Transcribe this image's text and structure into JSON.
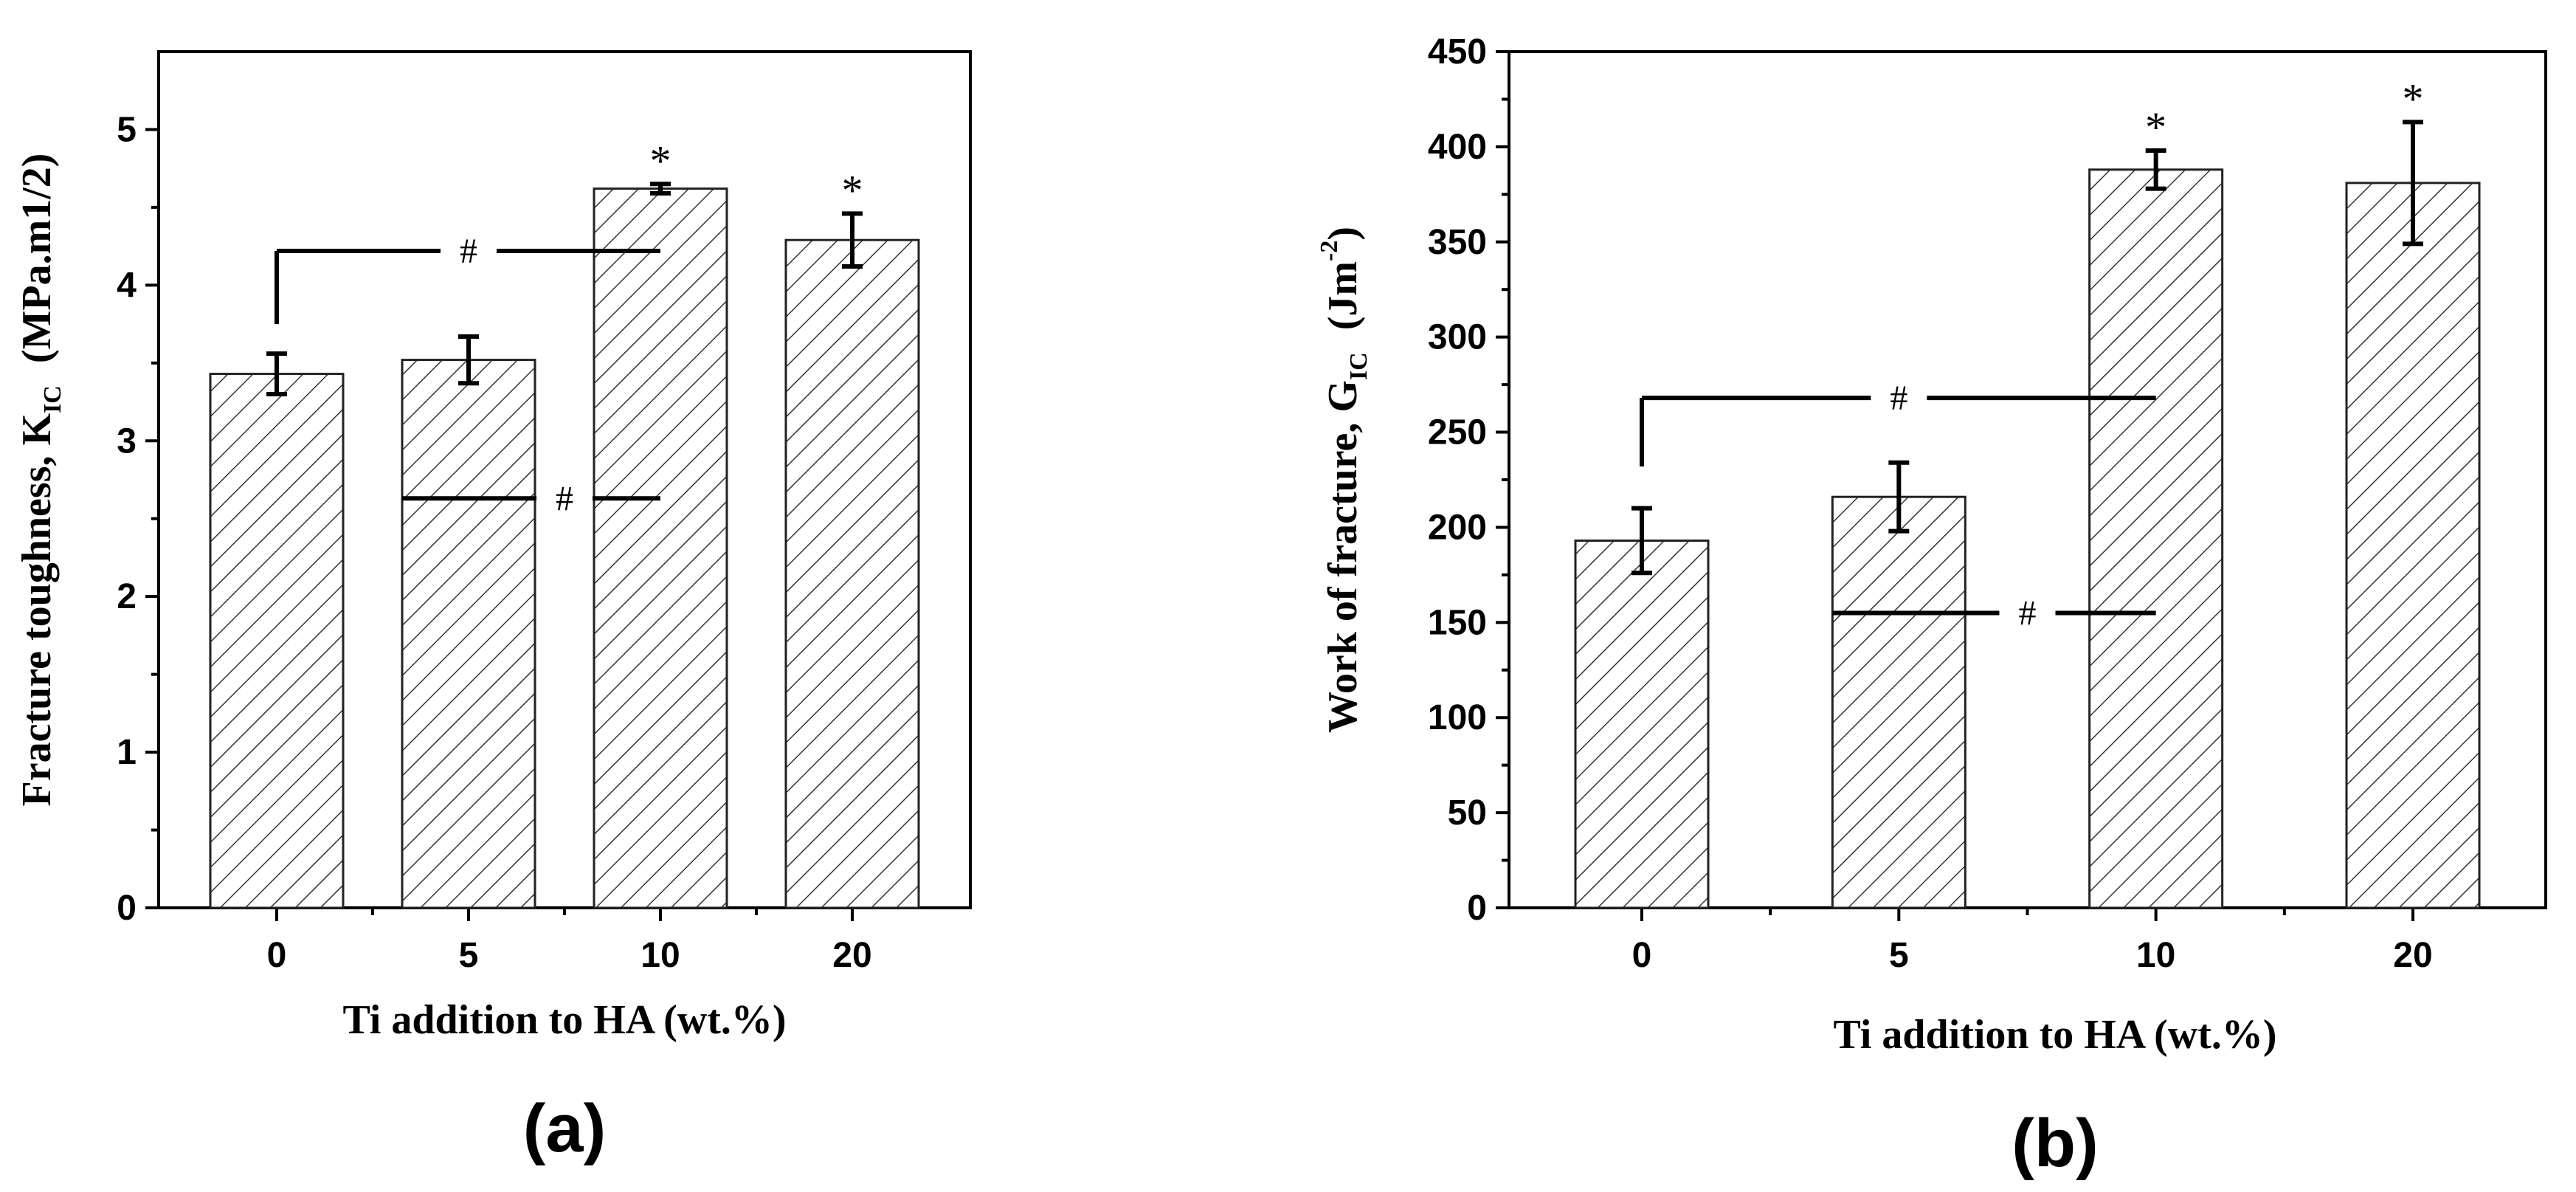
{
  "chart_data": [
    {
      "id": "a",
      "type": "bar",
      "panel_label": "(a)",
      "categories": [
        "0",
        "5",
        "10",
        "20"
      ],
      "values": [
        3.43,
        3.52,
        4.62,
        4.29
      ],
      "errors": [
        0.13,
        0.15,
        0.03,
        0.17
      ],
      "significance_star": [
        false,
        false,
        true,
        true
      ],
      "star_symbol": "*",
      "ylim": [
        0,
        5.5
      ],
      "yticks": [
        0,
        1,
        2,
        3,
        4,
        5
      ],
      "xlabel": "Ti addition to HA (wt.%)",
      "ylabel_main": "Fracture toughness, K",
      "ylabel_sub": "IC",
      "ylabel_unit": "(MPa.m1/2)",
      "brackets": [
        {
          "type": "elbow",
          "from_category": "0",
          "to_category": "10",
          "level": 4.22,
          "start": 3.75,
          "label": "#"
        },
        {
          "type": "line",
          "from_category": "5",
          "to_category": "10",
          "level": 2.63,
          "label": "#"
        }
      ]
    },
    {
      "id": "b",
      "type": "bar",
      "panel_label": "(b)",
      "categories": [
        "0",
        "5",
        "10",
        "20"
      ],
      "values": [
        193,
        216,
        388,
        381
      ],
      "errors": [
        17,
        18,
        10,
        32
      ],
      "significance_star": [
        false,
        false,
        true,
        true
      ],
      "star_symbol": "*",
      "ylim": [
        0,
        450
      ],
      "yticks": [
        0,
        50,
        100,
        150,
        200,
        250,
        300,
        350,
        400,
        450
      ],
      "xlabel": "Ti addition to HA (wt.%)",
      "ylabel_main": "Work of fracture, G",
      "ylabel_sub": "IC",
      "ylabel_unit": "(Jm",
      "ylabel_sup": "-2",
      "ylabel_close": ")",
      "brackets": [
        {
          "type": "elbow",
          "from_category": "0",
          "to_category": "10",
          "level": 268,
          "start": 232,
          "label": "#"
        },
        {
          "type": "line",
          "from_category": "5",
          "to_category": "10",
          "level": 155,
          "label": "#"
        }
      ]
    }
  ]
}
